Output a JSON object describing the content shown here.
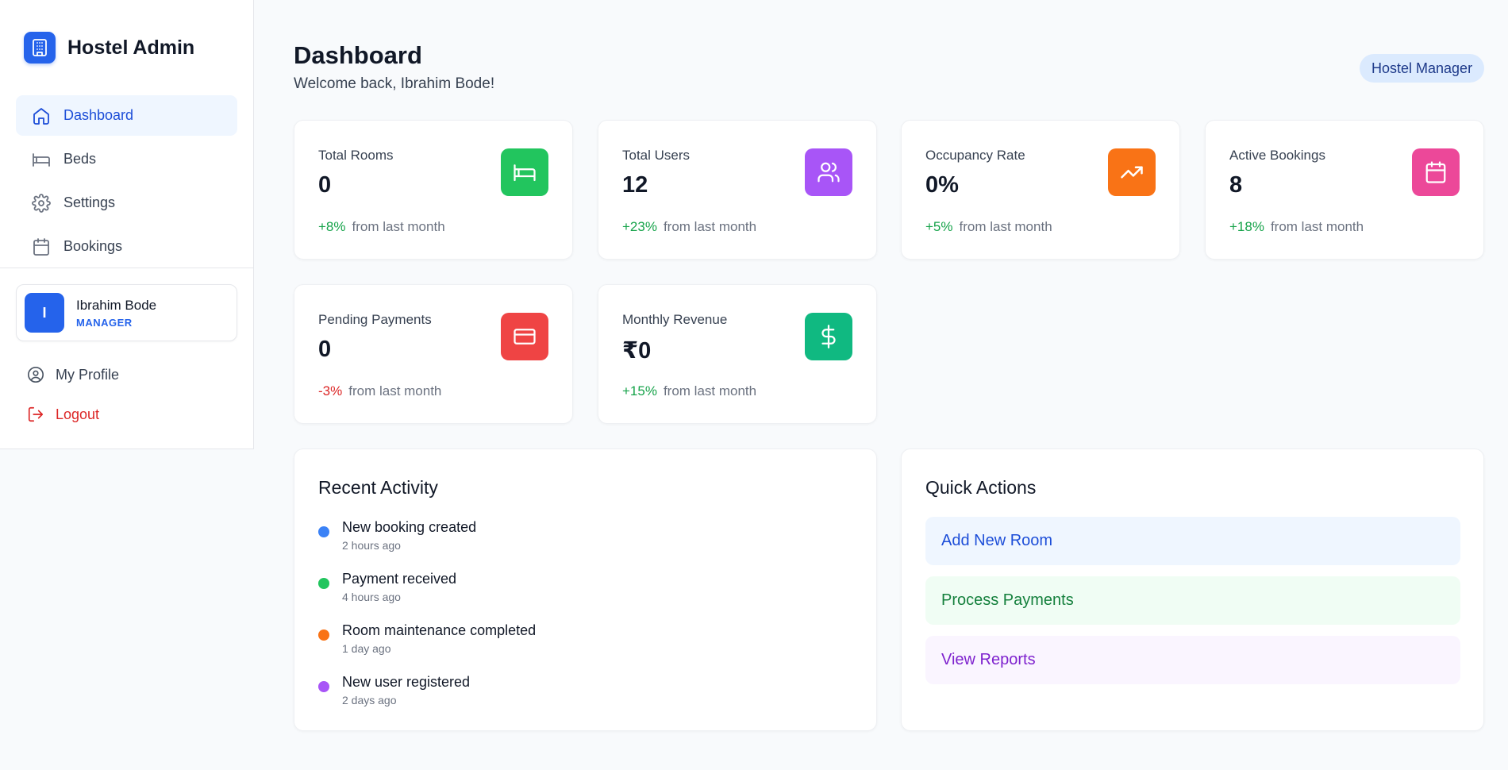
{
  "brand": {
    "title": "Hostel Admin",
    "icon": "building-icon",
    "color": "#2563eb"
  },
  "nav": {
    "items": [
      {
        "label": "Dashboard",
        "icon": "home-icon",
        "active": true
      },
      {
        "label": "Beds",
        "icon": "bed-icon",
        "active": false
      },
      {
        "label": "Settings",
        "icon": "gear-icon",
        "active": false
      },
      {
        "label": "Bookings",
        "icon": "calendar-icon",
        "active": false
      }
    ]
  },
  "user": {
    "initial": "I",
    "name": "Ibrahim Bode",
    "role": "MANAGER"
  },
  "links": {
    "profile": "My Profile",
    "logout": "Logout"
  },
  "header": {
    "title": "Dashboard",
    "subtitle": "Welcome back, Ibrahim Bode!",
    "badge": "Hostel Manager"
  },
  "stats": [
    {
      "label": "Total Rooms",
      "value": "0",
      "delta": "+8%",
      "direction": "up",
      "suffix": "from last month",
      "icon": "bed-icon",
      "color": "#22c55e"
    },
    {
      "label": "Total Users",
      "value": "12",
      "delta": "+23%",
      "direction": "up",
      "suffix": "from last month",
      "icon": "users-icon",
      "color": "#a855f7"
    },
    {
      "label": "Occupancy Rate",
      "value": "0%",
      "delta": "+5%",
      "direction": "up",
      "suffix": "from last month",
      "icon": "trending-up-icon",
      "color": "#f97316"
    },
    {
      "label": "Active Bookings",
      "value": "8",
      "delta": "+18%",
      "direction": "up",
      "suffix": "from last month",
      "icon": "calendar-icon",
      "color": "#ec4899"
    },
    {
      "label": "Pending Payments",
      "value": "0",
      "delta": "-3%",
      "direction": "down",
      "suffix": "from last month",
      "icon": "credit-card-icon",
      "color": "#ef4444"
    },
    {
      "label": "Monthly Revenue",
      "value": "₹0",
      "delta": "+15%",
      "direction": "up",
      "suffix": "from last month",
      "icon": "dollar-icon",
      "color": "#10b981"
    }
  ],
  "activity": {
    "title": "Recent Activity",
    "items": [
      {
        "title": "New booking created",
        "time": "2 hours ago",
        "color": "#3b82f6"
      },
      {
        "title": "Payment received",
        "time": "4 hours ago",
        "color": "#22c55e"
      },
      {
        "title": "Room maintenance completed",
        "time": "1 day ago",
        "color": "#f97316"
      },
      {
        "title": "New user registered",
        "time": "2 days ago",
        "color": "#a855f7"
      }
    ]
  },
  "quick_actions": {
    "title": "Quick Actions",
    "items": [
      {
        "label": "Add New Room",
        "tone": "blue"
      },
      {
        "label": "Process Payments",
        "tone": "green"
      },
      {
        "label": "View Reports",
        "tone": "purple"
      }
    ]
  }
}
